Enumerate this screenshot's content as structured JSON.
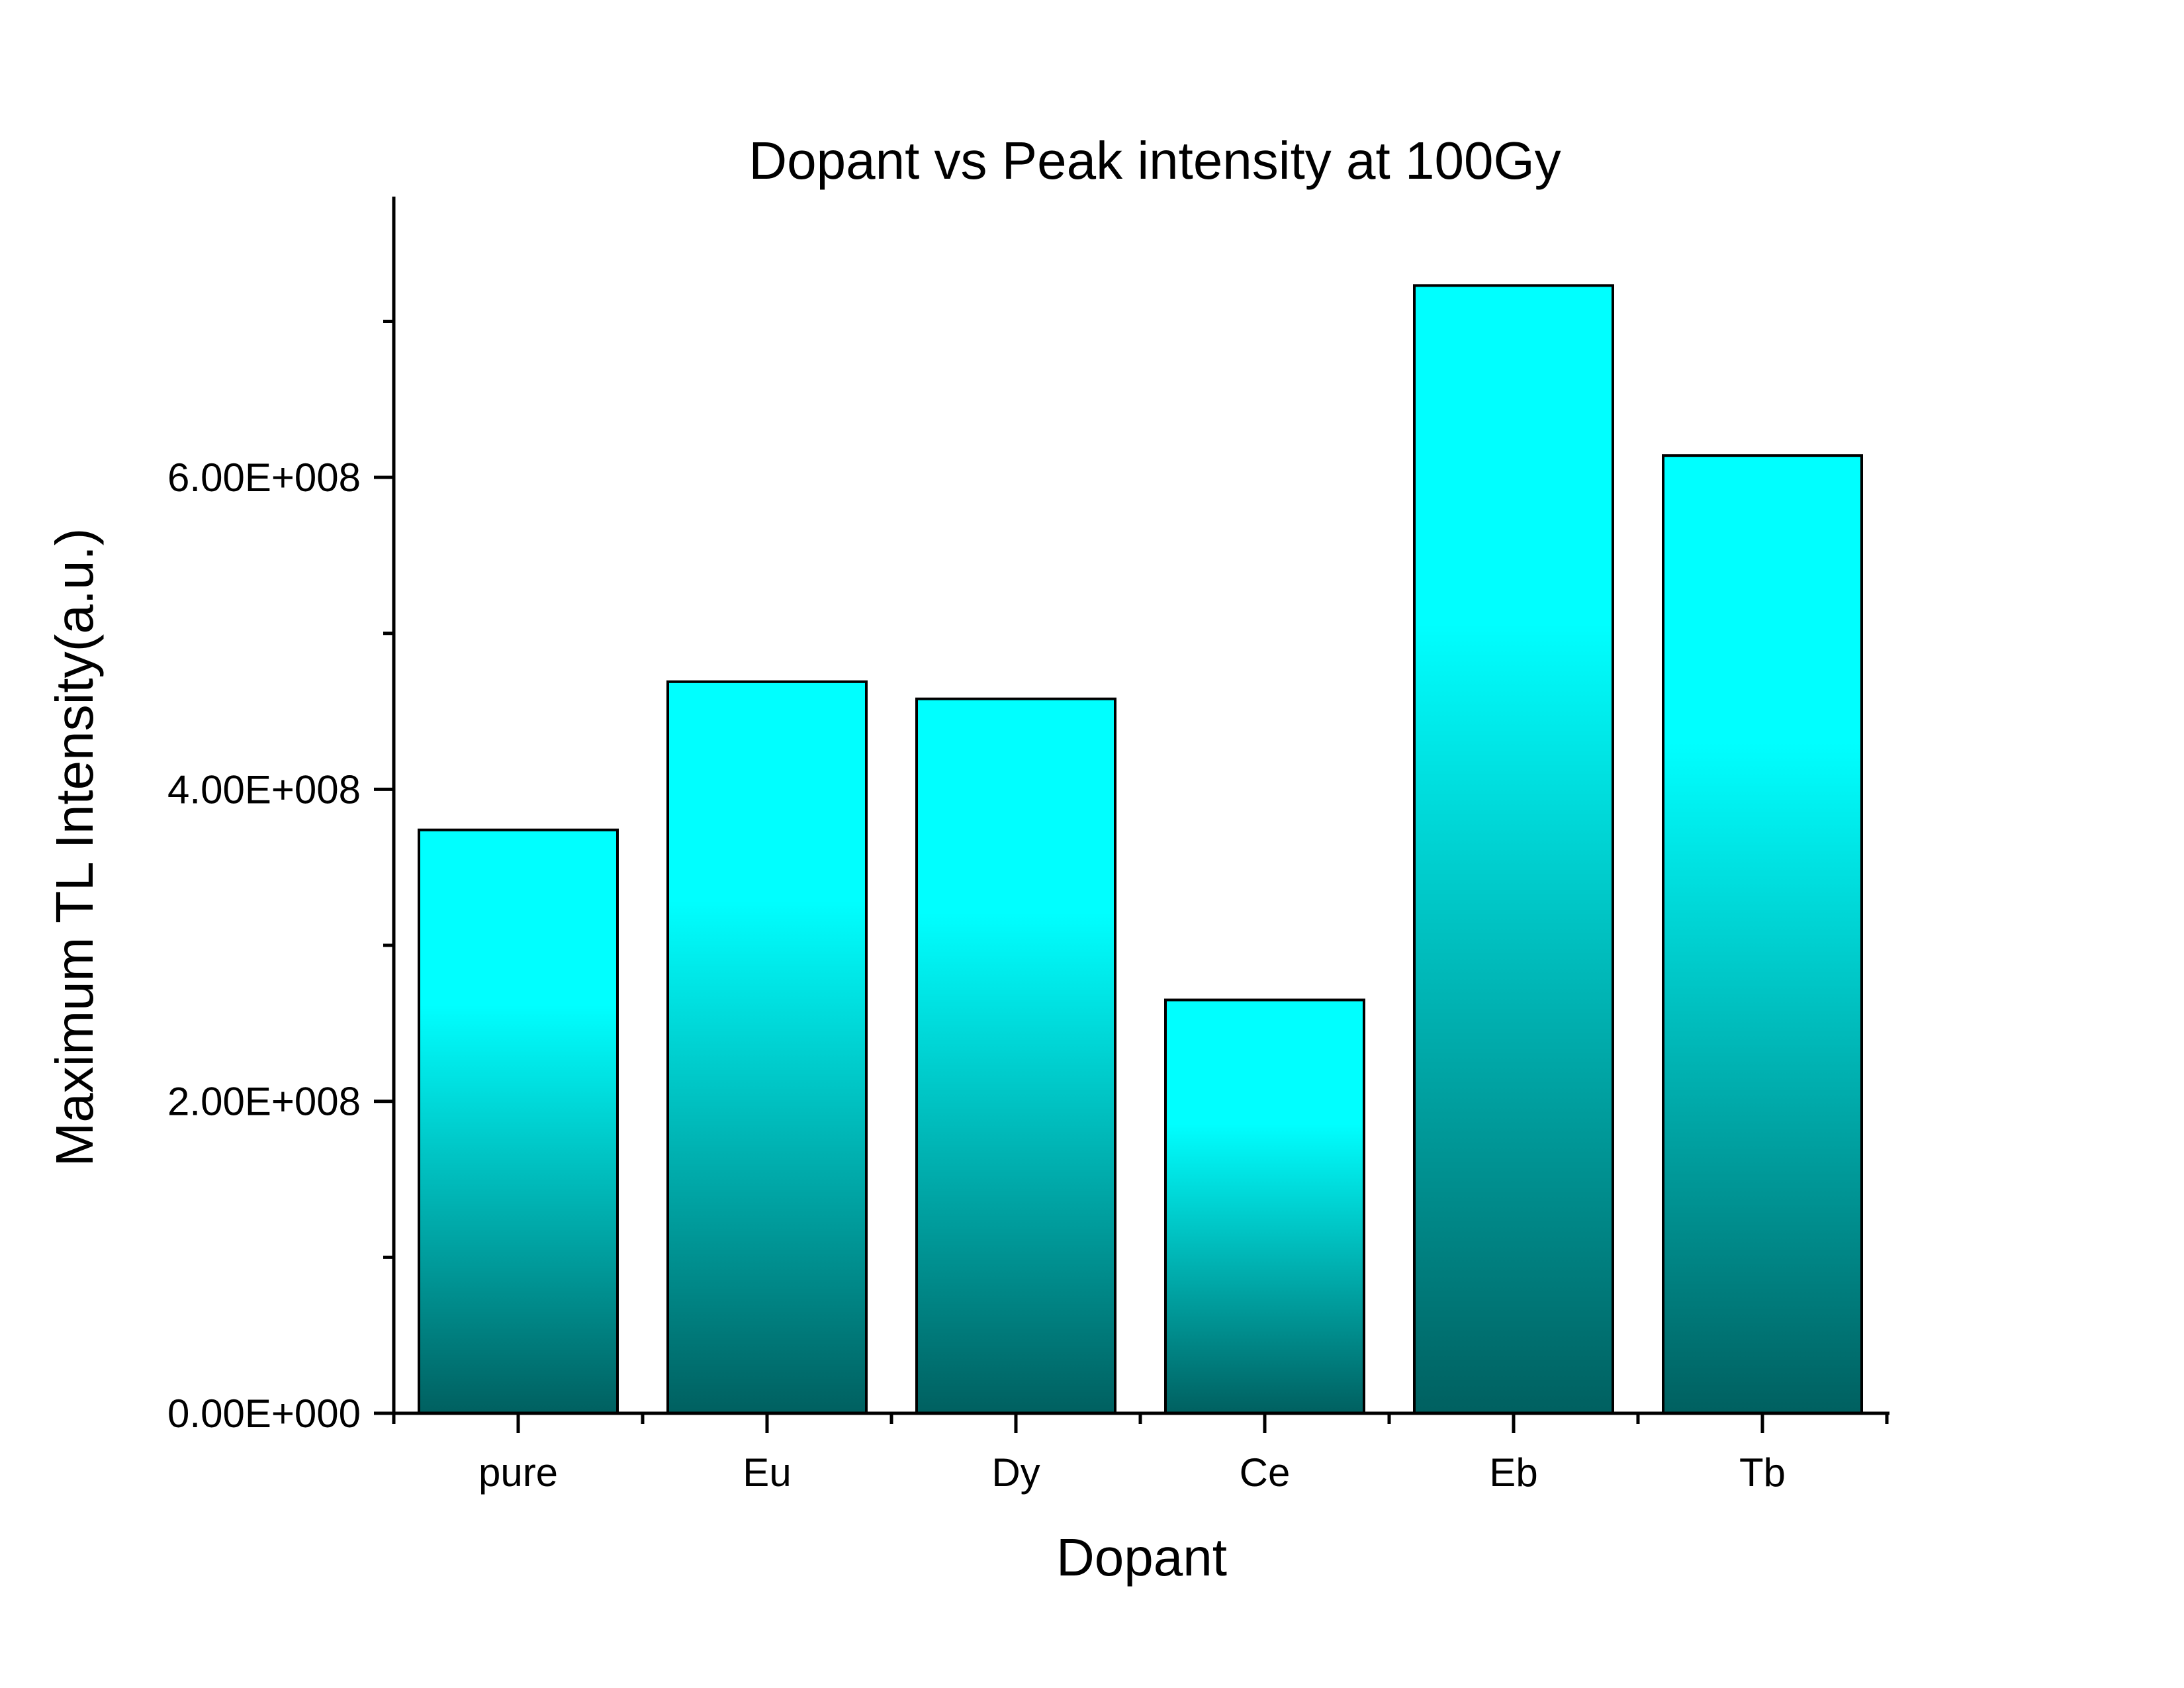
{
  "chart_data": {
    "type": "bar",
    "title": "Dopant vs Peak intensity at 100Gy",
    "xlabel": "Dopant",
    "ylabel": "Maximum TL Intensity(a.u.)",
    "categories": [
      "pure",
      "Eu",
      "Dy",
      "Ce",
      "Eb",
      "Tb"
    ],
    "values": [
      374000000,
      469000000,
      458000000,
      265000000,
      723000000,
      614000000
    ],
    "ylim": [
      0,
      780000000
    ],
    "yticks": [
      0,
      200000000,
      400000000,
      600000000
    ],
    "ytick_labels": [
      "0.00E+000",
      "2.00E+008",
      "4.00E+008",
      "6.00E+008"
    ],
    "y_minor_ticks": [
      100000000,
      300000000,
      500000000,
      700000000
    ],
    "grid": false,
    "legend": "none",
    "bar_gradient": {
      "top": "#00ffff",
      "bottom": "#006060"
    }
  }
}
